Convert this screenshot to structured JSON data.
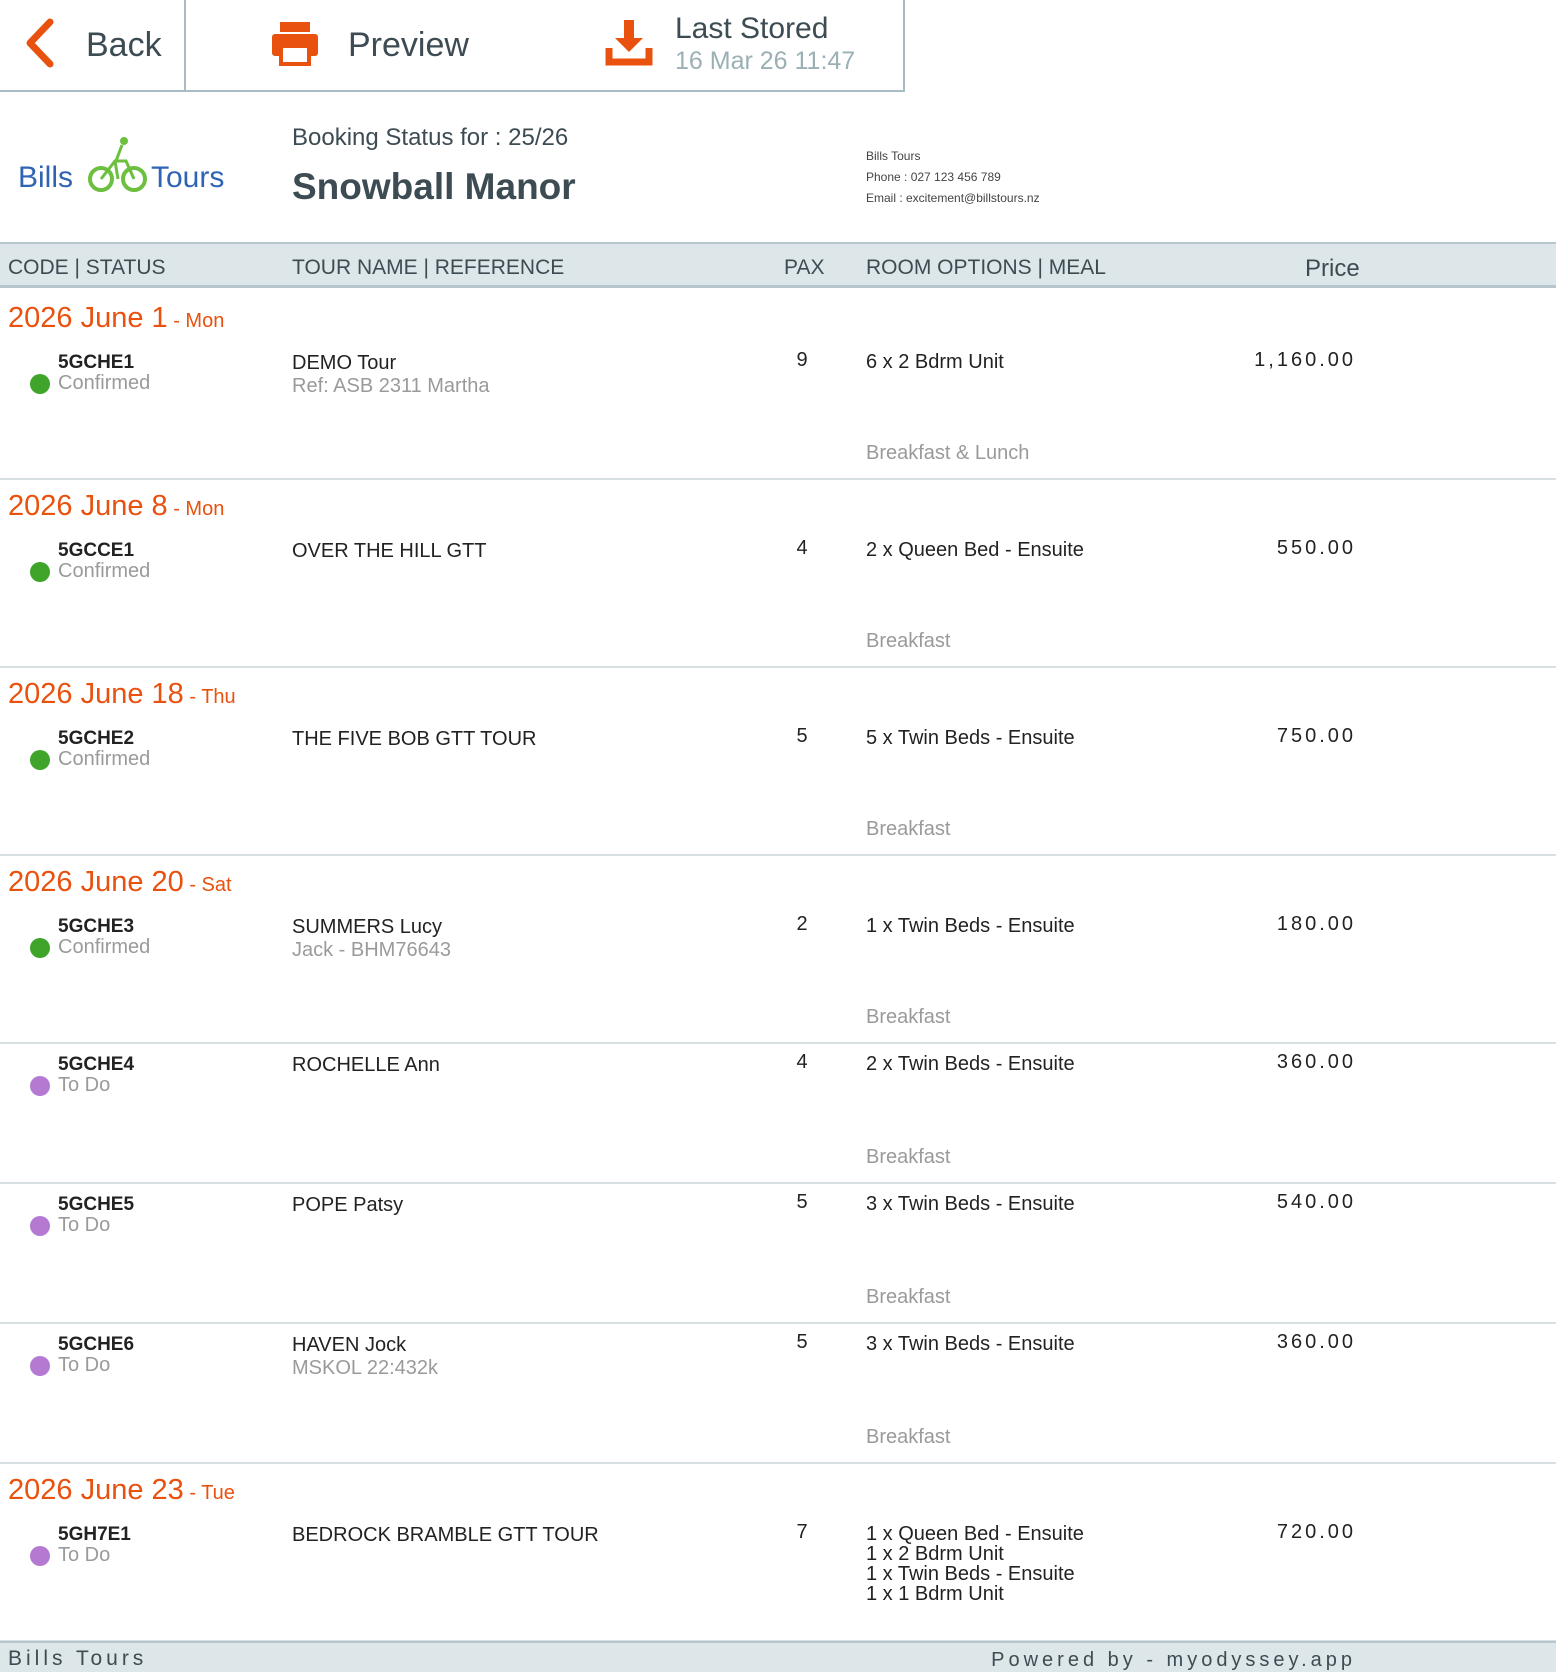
{
  "toolbar": {
    "back_label": "Back",
    "preview_label": "Preview",
    "stored_title": "Last Stored",
    "stored_date": "16 Mar 26 11:47"
  },
  "colors": {
    "accent": "#e8520e",
    "confirmed": "#3ea52a",
    "todo": "#b47ad2",
    "header_bg": "#dde7ea",
    "text_dark": "#3d4b53"
  },
  "header": {
    "logo_left": "Bills",
    "logo_right": "Tours",
    "booking_label": "Booking Status for : 25/26",
    "property": "Snowball Manor",
    "company": "Bills Tours",
    "phone": "Phone : 027 123 456 789",
    "email": "Email : excitement@billstours.nz"
  },
  "columns": {
    "code_status": "CODE  |  STATUS",
    "tour_ref": "TOUR NAME  |  REFERENCE",
    "pax": "PAX",
    "room_meal": "ROOM OPTIONS  |  MEAL",
    "price": "Price"
  },
  "bookings": [
    {
      "date": "2026 June 1",
      "dow": " - Mon",
      "code": "5GCHE1",
      "status": "Confirmed",
      "tour": "DEMO Tour",
      "ref": "Ref: ASB 2311 Martha",
      "pax": "9",
      "rooms": [
        "6 x 2 Bdrm Unit"
      ],
      "meal": "Breakfast & Lunch",
      "price": "1,160.00"
    },
    {
      "date": "2026 June 8",
      "dow": " - Mon",
      "code": "5GCCE1",
      "status": "Confirmed",
      "tour": "OVER THE HILL GTT",
      "ref": "",
      "pax": "4",
      "rooms": [
        "2 x Queen Bed - Ensuite"
      ],
      "meal": "Breakfast",
      "price": "550.00"
    },
    {
      "date": "2026 June 18",
      "dow": " - Thu",
      "code": "5GCHE2",
      "status": "Confirmed",
      "tour": "THE FIVE BOB GTT TOUR",
      "ref": "",
      "pax": "5",
      "rooms": [
        "5 x Twin Beds - Ensuite"
      ],
      "meal": "Breakfast",
      "price": "750.00"
    },
    {
      "date": "2026 June 20",
      "dow": " - Sat",
      "code": "5GCHE3",
      "status": "Confirmed",
      "tour": "SUMMERS Lucy",
      "ref": "Jack - BHM76643",
      "pax": "2",
      "rooms": [
        "1 x Twin Beds - Ensuite"
      ],
      "meal": "Breakfast",
      "price": "180.00"
    },
    {
      "date": "",
      "dow": "",
      "code": "5GCHE4",
      "status": "To Do",
      "tour": "ROCHELLE Ann",
      "ref": "",
      "pax": "4",
      "rooms": [
        "2 x Twin Beds - Ensuite"
      ],
      "meal": "Breakfast",
      "price": "360.00"
    },
    {
      "date": "",
      "dow": "",
      "code": "5GCHE5",
      "status": "To Do",
      "tour": "POPE Patsy",
      "ref": "",
      "pax": "5",
      "rooms": [
        "3 x Twin Beds - Ensuite"
      ],
      "meal": "Breakfast",
      "price": "540.00"
    },
    {
      "date": "",
      "dow": "",
      "code": "5GCHE6",
      "status": "To Do",
      "tour": "HAVEN Jock",
      "ref": "MSKOL 22:432k",
      "pax": "5",
      "rooms": [
        "3 x Twin Beds - Ensuite"
      ],
      "meal": "Breakfast",
      "price": "360.00"
    },
    {
      "date": "2026 June 23",
      "dow": " - Tue",
      "code": "5GH7E1",
      "status": "To Do",
      "tour": "BEDROCK BRAMBLE GTT TOUR",
      "ref": "",
      "pax": "7",
      "rooms": [
        "1 x Queen Bed - Ensuite",
        "1 x 2 Bdrm Unit",
        "1 x Twin Beds - Ensuite",
        "1 x 1 Bdrm Unit"
      ],
      "meal": "",
      "price": "720.00"
    }
  ],
  "footer": {
    "left": "Bills Tours",
    "right": "Powered by - myodyssey.app"
  }
}
